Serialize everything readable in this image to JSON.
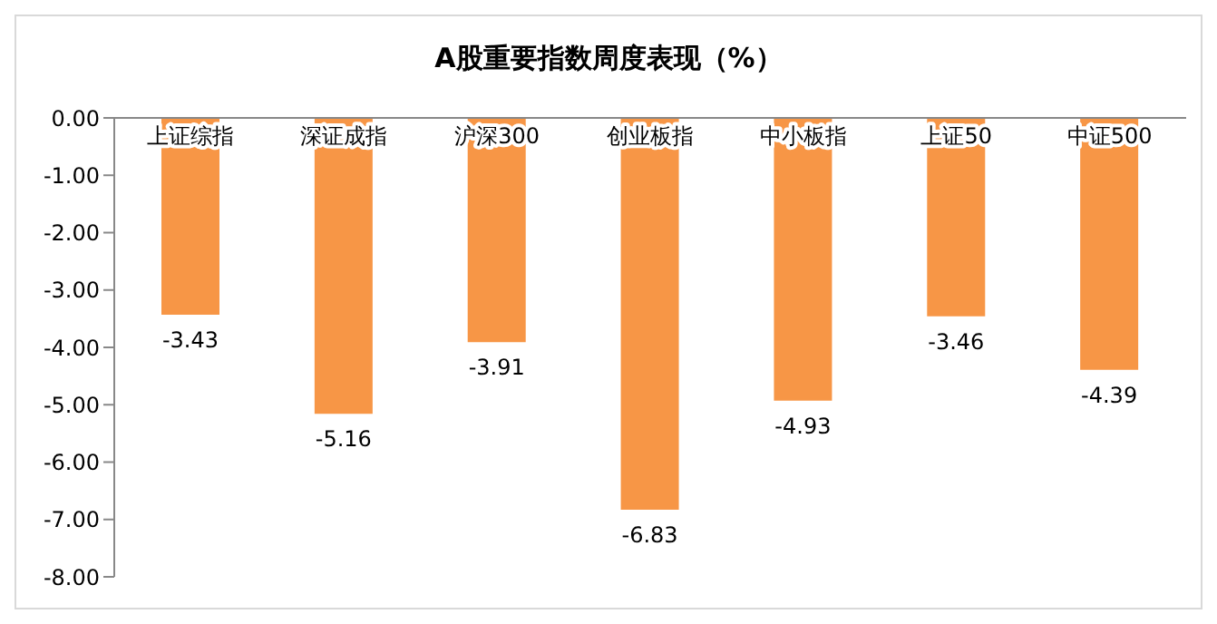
{
  "chart_data": {
    "type": "bar",
    "title": "A股重要指数周度表现（%）",
    "categories": [
      "上证综指",
      "深证成指",
      "沪深300",
      "创业板指",
      "中小板指",
      "上证50",
      "中证500"
    ],
    "values": [
      -3.43,
      -5.16,
      -3.91,
      -6.83,
      -4.93,
      -3.46,
      -4.39
    ],
    "color": "#f79646",
    "ylim": [
      -8,
      0
    ],
    "yticks": [
      {
        "value": 0,
        "label": "0.00"
      },
      {
        "value": -1,
        "label": "-1.00"
      },
      {
        "value": -2,
        "label": "-2.00"
      },
      {
        "value": -3,
        "label": "-3.00"
      },
      {
        "value": -4,
        "label": "-4.00"
      },
      {
        "value": -5,
        "label": "-5.00"
      },
      {
        "value": -6,
        "label": "-6.00"
      },
      {
        "value": -7,
        "label": "-7.00"
      },
      {
        "value": -8,
        "label": "-8.00"
      }
    ],
    "data_labels": true,
    "grid": false,
    "legend": false
  }
}
